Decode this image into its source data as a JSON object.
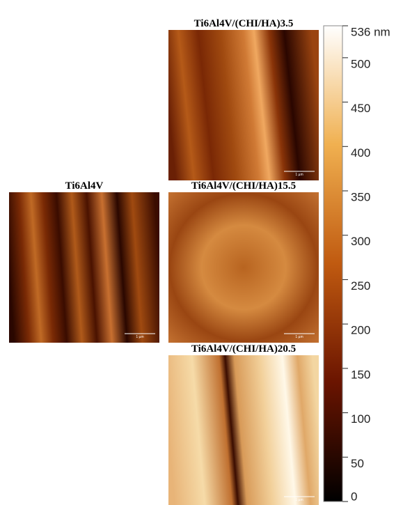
{
  "panels": [
    {
      "title": "Ti6Al4V",
      "scale_bar": "1 µm"
    },
    {
      "title": "Ti6Al4V/(CHI/HA)3.5",
      "scale_bar": "1 µm"
    },
    {
      "title": "Ti6Al4V/(CHI/HA)15.5",
      "scale_bar": "1 µm"
    },
    {
      "title": "Ti6Al4V/(CHI/HA)20.5",
      "scale_bar": "1 µm"
    }
  ],
  "colorbar": {
    "lim": [
      0,
      536
    ],
    "ticks": [
      0,
      50,
      100,
      150,
      200,
      250,
      300,
      350,
      400,
      450,
      500,
      {
        "value": 536,
        "label": "536 nm"
      }
    ]
  }
}
